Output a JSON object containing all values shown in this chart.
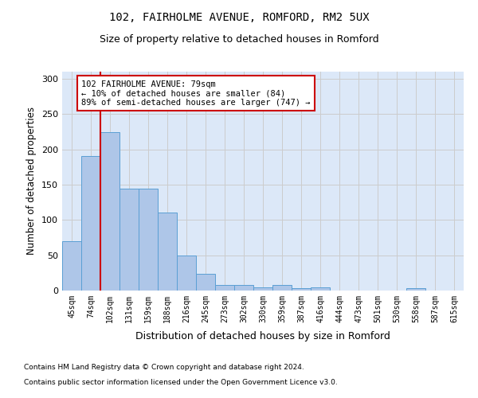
{
  "title_line1": "102, FAIRHOLME AVENUE, ROMFORD, RM2 5UX",
  "title_line2": "Size of property relative to detached houses in Romford",
  "xlabel": "Distribution of detached houses by size in Romford",
  "ylabel": "Number of detached properties",
  "bar_labels": [
    "45sqm",
    "74sqm",
    "102sqm",
    "131sqm",
    "159sqm",
    "188sqm",
    "216sqm",
    "245sqm",
    "273sqm",
    "302sqm",
    "330sqm",
    "359sqm",
    "387sqm",
    "416sqm",
    "444sqm",
    "473sqm",
    "501sqm",
    "530sqm",
    "558sqm",
    "587sqm",
    "615sqm"
  ],
  "bar_values": [
    70,
    190,
    224,
    144,
    144,
    110,
    50,
    24,
    8,
    8,
    5,
    8,
    3,
    4,
    0,
    0,
    0,
    0,
    3,
    0,
    0
  ],
  "bar_color": "#aec6e8",
  "bar_edge_color": "#5a9fd4",
  "vline_x": 1.5,
  "vline_color": "#cc0000",
  "annotation_text": "102 FAIRHOLME AVENUE: 79sqm\n← 10% of detached houses are smaller (84)\n89% of semi-detached houses are larger (747) →",
  "annotation_box_color": "#ffffff",
  "annotation_box_edge": "#cc0000",
  "ylim": [
    0,
    310
  ],
  "yticks": [
    0,
    50,
    100,
    150,
    200,
    250,
    300
  ],
  "grid_color": "#cccccc",
  "background_color": "#dce8f8",
  "footer_line1": "Contains HM Land Registry data © Crown copyright and database right 2024.",
  "footer_line2": "Contains public sector information licensed under the Open Government Licence v3.0."
}
